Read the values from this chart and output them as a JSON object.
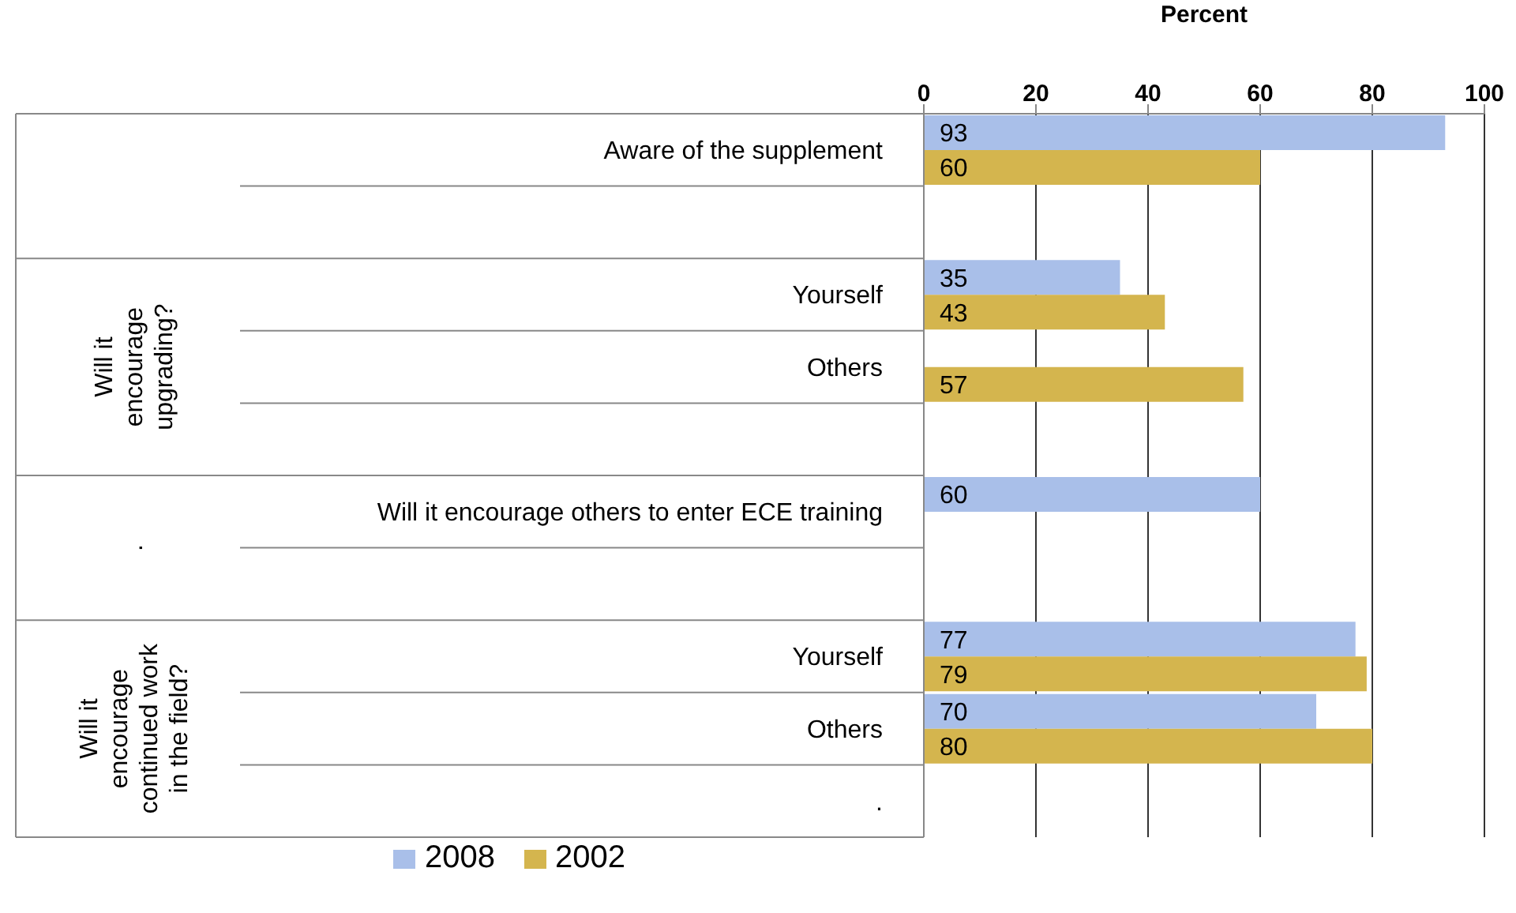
{
  "chart_data": {
    "type": "bar",
    "orientation": "horizontal",
    "xlabel": "Percent",
    "categories": [
      "Aware of the supplement",
      null,
      "Yourself",
      "Others",
      null,
      "Will it encourage others to enter ECE training",
      null,
      "Yourself",
      "Others",
      "."
    ],
    "series": [
      {
        "name": "2008",
        "color": "#a9bfe9",
        "values": [
          93,
          null,
          35,
          null,
          null,
          60,
          null,
          77,
          70,
          null
        ]
      },
      {
        "name": "2002",
        "color": "#d4b54e",
        "values": [
          60,
          null,
          43,
          57,
          null,
          null,
          null,
          79,
          80,
          null
        ]
      }
    ],
    "xlim": [
      0,
      100
    ],
    "xticks": [
      0,
      20,
      40,
      60,
      80,
      100
    ],
    "grid": "x",
    "legend": "bottom",
    "data_labels": true,
    "annotations": [
      "Will it encourage upgrading?",
      ".",
      "Will it encourage continued work in the field?"
    ]
  }
}
